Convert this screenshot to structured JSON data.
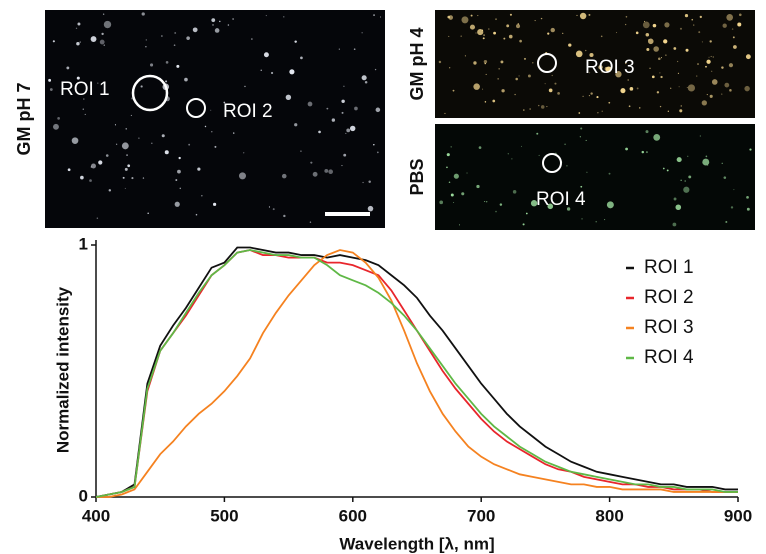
{
  "panels": [
    {
      "label": "GM pH 7",
      "rois": [
        "ROI 1",
        "ROI 2"
      ]
    },
    {
      "label": "GM pH 4",
      "rois": [
        "ROI 3"
      ]
    },
    {
      "label": "PBS",
      "rois": [
        "ROI 4"
      ]
    }
  ],
  "chart_data": {
    "type": "line",
    "xlabel": "Wavelength [λ, nm]",
    "ylabel": "Normalized intensity",
    "x": [
      400,
      410,
      420,
      430,
      440,
      450,
      460,
      470,
      480,
      490,
      500,
      510,
      520,
      530,
      540,
      550,
      560,
      570,
      580,
      590,
      600,
      610,
      620,
      630,
      640,
      650,
      660,
      670,
      680,
      690,
      700,
      710,
      720,
      730,
      740,
      750,
      760,
      770,
      780,
      790,
      800,
      810,
      820,
      830,
      840,
      850,
      860,
      870,
      880,
      890,
      900
    ],
    "xlim": [
      400,
      900
    ],
    "xticks": [
      400,
      500,
      600,
      700,
      800,
      900
    ],
    "ylim": [
      0,
      1
    ],
    "yticks": [
      0,
      1
    ],
    "series": [
      {
        "name": "ROI 1",
        "color": "#111111",
        "values": [
          0,
          0.01,
          0.02,
          0.05,
          0.45,
          0.6,
          0.68,
          0.75,
          0.83,
          0.91,
          0.93,
          0.99,
          0.99,
          0.98,
          0.97,
          0.97,
          0.96,
          0.96,
          0.95,
          0.96,
          0.95,
          0.94,
          0.92,
          0.88,
          0.84,
          0.79,
          0.72,
          0.66,
          0.59,
          0.52,
          0.45,
          0.39,
          0.33,
          0.28,
          0.24,
          0.2,
          0.17,
          0.14,
          0.12,
          0.1,
          0.09,
          0.08,
          0.07,
          0.06,
          0.05,
          0.05,
          0.04,
          0.04,
          0.04,
          0.03,
          0.03
        ]
      },
      {
        "name": "ROI 2",
        "color": "#e8262c",
        "values": [
          0,
          0.01,
          0.02,
          0.04,
          0.42,
          0.58,
          0.65,
          0.72,
          0.8,
          0.88,
          0.92,
          0.97,
          0.98,
          0.96,
          0.96,
          0.95,
          0.95,
          0.95,
          0.93,
          0.93,
          0.92,
          0.9,
          0.88,
          0.82,
          0.74,
          0.66,
          0.58,
          0.5,
          0.43,
          0.37,
          0.31,
          0.26,
          0.22,
          0.19,
          0.16,
          0.13,
          0.11,
          0.1,
          0.08,
          0.07,
          0.06,
          0.05,
          0.05,
          0.04,
          0.04,
          0.03,
          0.03,
          0.03,
          0.02,
          0.02,
          0.02
        ]
      },
      {
        "name": "ROI 3",
        "color": "#f58220",
        "values": [
          0,
          0,
          0.01,
          0.03,
          0.1,
          0.17,
          0.22,
          0.28,
          0.33,
          0.37,
          0.42,
          0.48,
          0.55,
          0.65,
          0.73,
          0.8,
          0.86,
          0.92,
          0.96,
          0.98,
          0.97,
          0.93,
          0.87,
          0.78,
          0.66,
          0.53,
          0.42,
          0.33,
          0.26,
          0.2,
          0.16,
          0.13,
          0.11,
          0.09,
          0.08,
          0.07,
          0.06,
          0.05,
          0.05,
          0.04,
          0.04,
          0.03,
          0.03,
          0.03,
          0.03,
          0.02,
          0.02,
          0.02,
          0.02,
          0.02,
          0.02
        ]
      },
      {
        "name": "ROI 4",
        "color": "#5fb846",
        "values": [
          0,
          0.01,
          0.02,
          0.04,
          0.43,
          0.58,
          0.65,
          0.73,
          0.81,
          0.88,
          0.92,
          0.97,
          0.98,
          0.97,
          0.96,
          0.96,
          0.95,
          0.95,
          0.92,
          0.88,
          0.86,
          0.84,
          0.81,
          0.77,
          0.72,
          0.66,
          0.59,
          0.52,
          0.45,
          0.39,
          0.33,
          0.28,
          0.24,
          0.2,
          0.17,
          0.14,
          0.12,
          0.1,
          0.09,
          0.08,
          0.07,
          0.06,
          0.05,
          0.05,
          0.04,
          0.04,
          0.03,
          0.03,
          0.03,
          0.02,
          0.02
        ]
      }
    ]
  }
}
